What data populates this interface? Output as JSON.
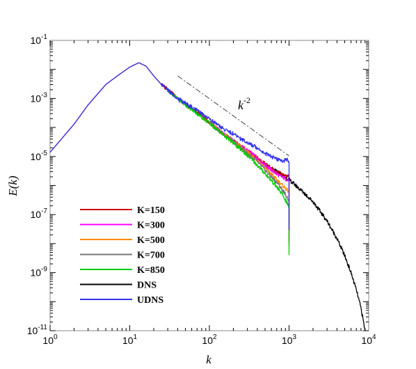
{
  "chart_data": {
    "type": "line",
    "xscale": "log",
    "yscale": "log",
    "xlim": [
      1,
      10000
    ],
    "ylim": [
      1e-11,
      0.1
    ],
    "xlabel": "k",
    "ylabel": "E(k)",
    "legend_position": "lower-left",
    "x_ticks": [
      {
        "base": "10",
        "exp": "0"
      },
      {
        "base": "10",
        "exp": "1"
      },
      {
        "base": "10",
        "exp": "2"
      },
      {
        "base": "10",
        "exp": "3"
      },
      {
        "base": "10",
        "exp": "4"
      }
    ],
    "y_ticks": [
      {
        "base": "10",
        "exp": "-1"
      },
      {
        "base": "10",
        "exp": "-3"
      },
      {
        "base": "10",
        "exp": "-5"
      },
      {
        "base": "10",
        "exp": "-7"
      },
      {
        "base": "10",
        "exp": "-9"
      },
      {
        "base": "10",
        "exp": "-11"
      }
    ],
    "annotation": {
      "text": "k",
      "exp": "-2",
      "line_x": [
        40,
        1000
      ],
      "line_y": [
        0.006,
        1.05e-05
      ]
    },
    "series": [
      {
        "name": "K=150",
        "color": "#cc0000",
        "x": [
          1,
          2,
          3,
          5,
          7,
          10,
          13,
          16,
          20,
          25,
          30,
          40,
          60,
          80,
          100,
          150,
          200,
          300,
          400,
          500,
          600,
          700,
          800,
          900,
          1000,
          1000
        ],
        "y": [
          1.4e-05,
          0.00013,
          0.0006,
          0.003,
          0.006,
          0.012,
          0.017,
          0.013,
          0.006,
          0.003,
          0.002,
          0.001,
          0.00045,
          0.00025,
          0.00015,
          6e-05,
          3.4e-05,
          1.6e-05,
          9e-06,
          5.5e-06,
          4e-06,
          3e-06,
          2.5e-06,
          2.2e-06,
          2e-06,
          1.2e-08
        ]
      },
      {
        "name": "K=300",
        "color": "#ff00ff",
        "x": [
          100,
          150,
          200,
          300,
          400,
          500,
          600,
          700,
          800,
          900,
          1000,
          1000
        ],
        "y": [
          0.00015,
          6e-05,
          3.4e-05,
          1.6e-05,
          9e-06,
          5e-06,
          3.5e-06,
          2.5e-06,
          2e-06,
          1.7e-06,
          1.5e-06,
          1.5e-08
        ]
      },
      {
        "name": "K=500",
        "color": "#ff8800",
        "x": [
          100,
          150,
          200,
          300,
          400,
          500,
          600,
          700,
          800,
          900,
          1000,
          1000
        ],
        "y": [
          0.00015,
          6e-05,
          3.3e-05,
          1.4e-05,
          7.5e-06,
          4e-06,
          2.5e-06,
          1.6e-06,
          1.1e-06,
          8e-07,
          6e-07,
          1e-08
        ]
      },
      {
        "name": "K=700",
        "color": "#777777",
        "x": [
          100,
          150,
          200,
          300,
          400,
          500,
          600,
          700,
          800,
          900,
          1000,
          1000
        ],
        "y": [
          0.00015,
          5.8e-05,
          3.2e-05,
          1.3e-05,
          6.5e-06,
          3.4e-06,
          2e-06,
          1.3e-06,
          8e-07,
          5e-07,
          3e-07,
          8e-09
        ]
      },
      {
        "name": "K=850",
        "color": "#00cc00",
        "x": [
          30,
          40,
          60,
          80,
          100,
          150,
          200,
          300,
          400,
          500,
          600,
          700,
          800,
          900,
          1000,
          1000
        ],
        "y": [
          0.002,
          0.00095,
          0.00042,
          0.00023,
          0.00014,
          5.5e-05,
          2.9e-05,
          1.1e-05,
          5e-06,
          2.6e-06,
          1.5e-06,
          9e-07,
          5.5e-07,
          3.2e-07,
          1.8e-07,
          4e-09
        ]
      },
      {
        "name": "DNS",
        "color": "#000000",
        "x": [
          500,
          700,
          1000,
          1500,
          2000,
          3000,
          4000,
          5000,
          6000,
          7000,
          8000,
          9000
        ],
        "y": [
          5e-06,
          3e-06,
          1.6e-06,
          6e-07,
          2.8e-07,
          6e-08,
          1.5e-08,
          3.8e-09,
          1e-09,
          2.5e-10,
          6e-11,
          1e-11
        ]
      },
      {
        "name": "UDNS",
        "color": "#3333ee",
        "x": [
          1,
          2,
          3,
          5,
          7,
          10,
          13,
          16,
          20,
          25,
          30,
          40,
          60,
          80,
          100,
          150,
          200,
          300,
          400,
          500,
          600,
          700,
          800,
          900,
          950,
          1000,
          1000
        ],
        "y": [
          1.4e-05,
          0.00013,
          0.0006,
          0.003,
          0.006,
          0.012,
          0.017,
          0.013,
          0.006,
          0.003,
          0.002,
          0.001,
          0.0005,
          0.0003,
          0.0002,
          9e-05,
          6e-05,
          3e-05,
          2e-05,
          1.3e-05,
          1e-05,
          8e-06,
          7e-06,
          7.5e-06,
          8.5e-06,
          6e-06,
          3e-08
        ]
      }
    ]
  }
}
